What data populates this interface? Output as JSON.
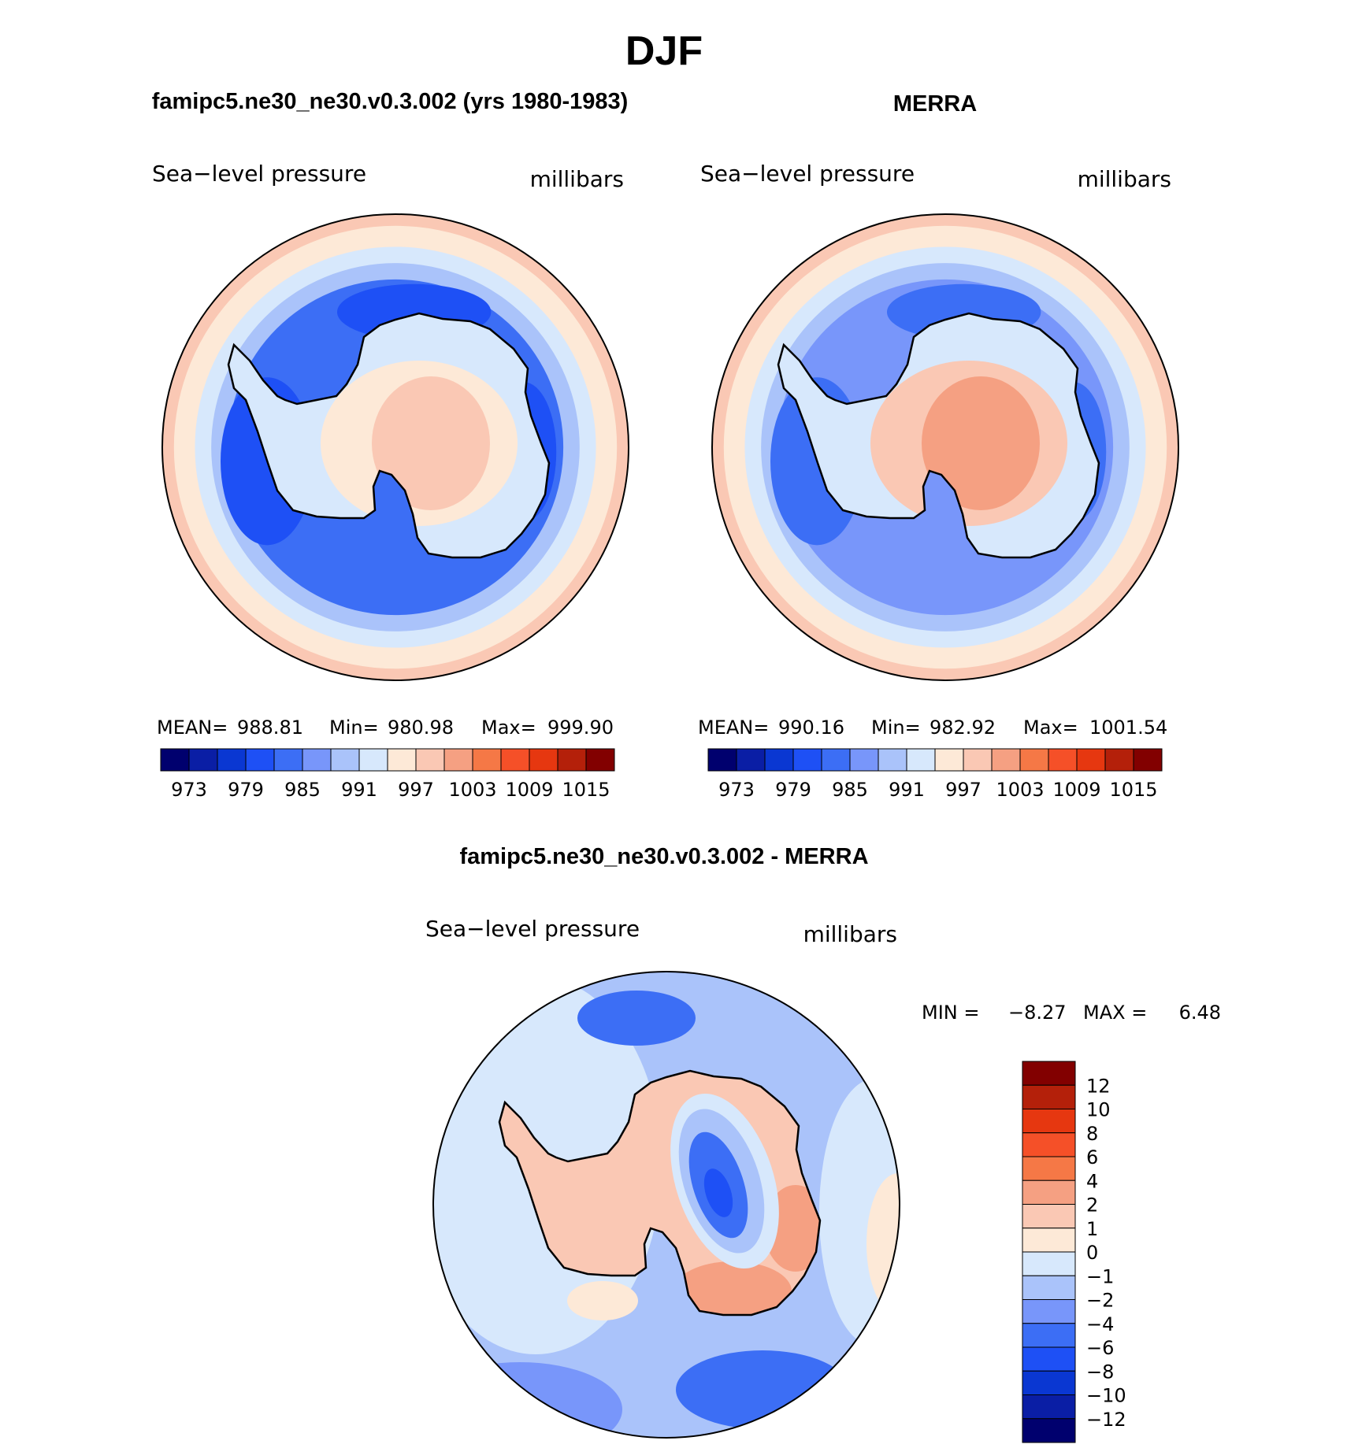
{
  "chart_data": {
    "type": "contour-map",
    "season": "DJF",
    "variable": "Sea−level pressure",
    "units": "millibars",
    "panels": [
      {
        "id": "model",
        "title": "famipc5.ne30_ne30.v0.3.002 (yrs 1980-1983)",
        "left_label": "Sea−level pressure",
        "right_label": "millibars",
        "stats": {
          "mean_label": "MEAN=",
          "mean": "988.81",
          "min_label": "Min=",
          "min": "980.98",
          "max_label": "Max=",
          "max": "999.90"
        },
        "field": {
          "rim": 997,
          "ocean_trough": 983,
          "storm_min": 980,
          "continent_high": 999,
          "interior_low": 993
        }
      },
      {
        "id": "obs",
        "title": "MERRA",
        "left_label": "Sea−level pressure",
        "right_label": "millibars",
        "stats": {
          "mean_label": "MEAN=",
          "mean": "990.16",
          "min_label": "Min=",
          "min": "982.92",
          "max_label": "Max=",
          "max": "1001.54"
        },
        "field": {
          "rim": 998,
          "ocean_trough": 986,
          "storm_min": 983,
          "continent_high": 1001,
          "interior_low": 993
        }
      }
    ],
    "main_colorbar": {
      "levels": [
        970,
        973,
        976,
        979,
        982,
        985,
        988,
        991,
        994,
        997,
        1000,
        1003,
        1006,
        1009,
        1012,
        1015,
        1018
      ],
      "tick_labels": [
        "973",
        "979",
        "985",
        "991",
        "997",
        "1003",
        "1009",
        "1015"
      ],
      "colors": [
        "#00006e",
        "#0a1ea5",
        "#0a37d2",
        "#1e50f5",
        "#3c6ef5",
        "#7896fa",
        "#aac3fa",
        "#d7e8fc",
        "#fde9d7",
        "#fac8b4",
        "#f5a082",
        "#f57846",
        "#f55028",
        "#e63710",
        "#b4200a",
        "#820000"
      ]
    },
    "difference_panel": {
      "title": "famipc5.ne30_ne30.v0.3.002 - MERRA",
      "left_label": "Sea−level pressure",
      "right_label": "millibars",
      "stats": {
        "min_label": "MIN =",
        "min": "−8.27",
        "max_label": "MAX =",
        "max": "6.48"
      },
      "colorbar": {
        "labels_top_to_bottom": [
          "12",
          "10",
          "8",
          "6",
          "4",
          "2",
          "1",
          "0",
          "−1",
          "−2",
          "−4",
          "−6",
          "−8",
          "−10",
          "−12"
        ],
        "colors_top_to_bottom": [
          "#820000",
          "#b4200a",
          "#e63710",
          "#f55028",
          "#f57846",
          "#f5a082",
          "#fac8b4",
          "#fde9d7",
          "#d7e8fc",
          "#aac3fa",
          "#7896fa",
          "#3c6ef5",
          "#1e50f5",
          "#0a37d2",
          "#0a1ea5",
          "#00006e"
        ]
      }
    }
  },
  "header": {
    "title": "DJF"
  }
}
